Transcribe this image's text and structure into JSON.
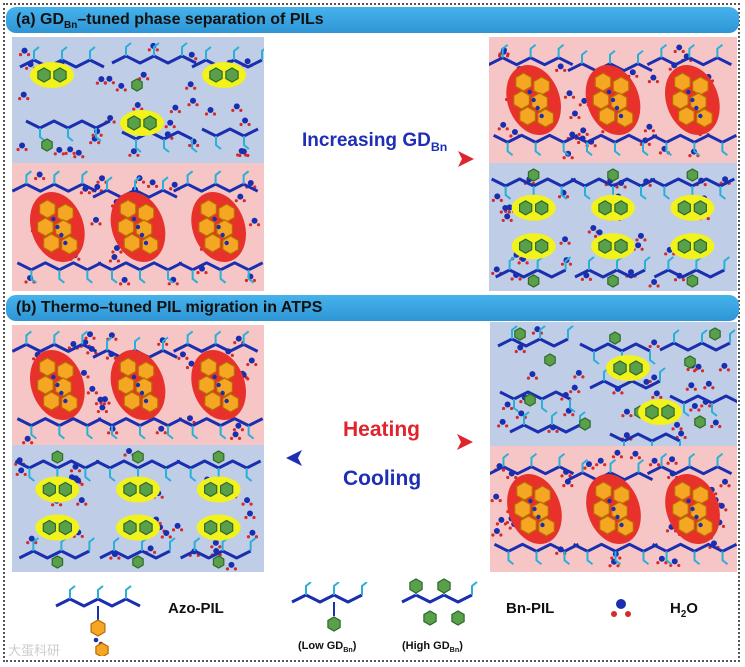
{
  "section_a": {
    "title_prefix": "(a) GD",
    "title_sub": "Bn",
    "title_suffix": "–tuned phase separation of PILs",
    "arrow_label": "Increasing GD",
    "arrow_label_sub": "Bn"
  },
  "section_b": {
    "title": "(b) Thermo–tuned PIL migration in ATPS",
    "heating_label": "Heating",
    "cooling_label": "Cooling"
  },
  "legend": {
    "azo_pil": "Azo-PIL",
    "bn_pil": "Bn-PIL",
    "low_prefix": "(Low GD",
    "low_sub": "Bn",
    "low_suffix": ")",
    "high_prefix": "(High GD",
    "high_sub": "Bn",
    "high_suffix": ")",
    "water_main": "H",
    "water_sub": "2",
    "water_end": "O"
  },
  "colors": {
    "banner": "#3aa7e6",
    "blue_phase": "#c0cde6",
    "pink_phase": "#f6c6c6",
    "chain": "#1a2fb0",
    "branch": "#2ab0d8",
    "red_ellipse": "#e8312a",
    "yellow_glow": "#f2f21c",
    "orange_ring": "#f5a623",
    "green_ring": "#5aa04a",
    "heating": "#e0242b",
    "cooling": "#1f2fb5"
  },
  "watermark": "大蛋科研"
}
